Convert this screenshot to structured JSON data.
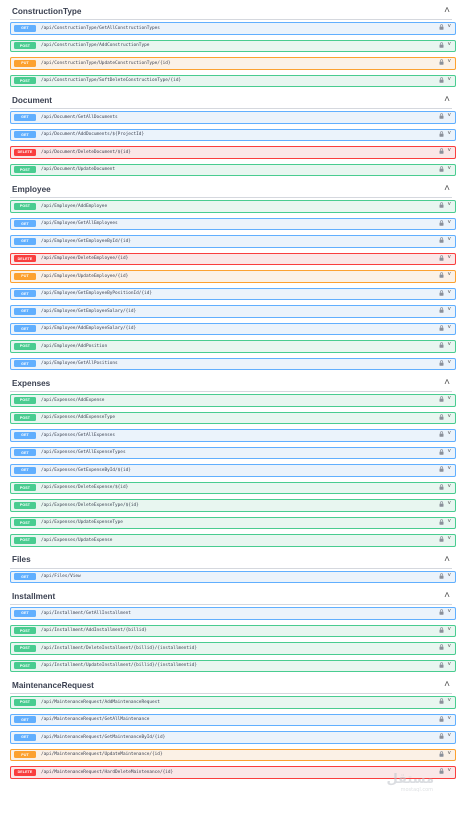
{
  "groups": [
    {
      "name": "ConstructionType",
      "ops": [
        {
          "method": "GET",
          "path": "/api/ConstructionType/GetAllConstructionTypes"
        },
        {
          "method": "POST",
          "path": "/api/ConstructionType/AddConstructionType"
        },
        {
          "method": "PUT",
          "path": "/api/ConstructionType/UpdateConstructionType/{id}"
        },
        {
          "method": "POST",
          "path": "/api/ConstructionType/SoftDeleteConstructionType/{id}"
        }
      ]
    },
    {
      "name": "Document",
      "ops": [
        {
          "method": "GET",
          "path": "/api/Document/GetAllDocuments"
        },
        {
          "method": "GET",
          "path": "/api/Document/AddDocuments/${ProjectId}"
        },
        {
          "method": "DELETE",
          "path": "/api/Document/DeleteDocument/${id}"
        },
        {
          "method": "POST",
          "path": "/api/Document/UpdateDocument"
        }
      ]
    },
    {
      "name": "Employee",
      "ops": [
        {
          "method": "POST",
          "path": "/api/Employee/AddEmployee"
        },
        {
          "method": "GET",
          "path": "/api/Employee/GetAllEmployees"
        },
        {
          "method": "GET",
          "path": "/api/Employee/GetEmployeeById/{id}"
        },
        {
          "method": "DELETE",
          "path": "/api/Employee/DeleteEmployee/{id}"
        },
        {
          "method": "PUT",
          "path": "/api/Employee/UpdateEmployee/{id}"
        },
        {
          "method": "GET",
          "path": "/api/Employee/GetEmployeeByPositionId/{id}"
        },
        {
          "method": "GET",
          "path": "/api/Employee/GetEmployeeSalary/{id}"
        },
        {
          "method": "GET",
          "path": "/api/Employee/AddEmployeeSalary/{id}"
        },
        {
          "method": "POST",
          "path": "/api/Employee/AddPosition"
        },
        {
          "method": "GET",
          "path": "/api/Employee/GetAllPositions"
        }
      ]
    },
    {
      "name": "Expenses",
      "ops": [
        {
          "method": "POST",
          "path": "/api/Expenses/AddExpense"
        },
        {
          "method": "POST",
          "path": "/api/Expenses/AddExpenseType"
        },
        {
          "method": "GET",
          "path": "/api/Expenses/GetAllExpenses"
        },
        {
          "method": "GET",
          "path": "/api/Expenses/GetAllExpenseTypes"
        },
        {
          "method": "GET",
          "path": "/api/Expenses/GetExpenseById/${id}"
        },
        {
          "method": "POST",
          "path": "/api/Expenses/DeleteExpense/${id}"
        },
        {
          "method": "POST",
          "path": "/api/Expenses/DeleteExpenseType/${id}"
        },
        {
          "method": "POST",
          "path": "/api/Expenses/UpdateExpenseType"
        },
        {
          "method": "POST",
          "path": "/api/Expenses/UpdateExpense"
        }
      ]
    },
    {
      "name": "Files",
      "ops": [
        {
          "method": "GET",
          "path": "/api/Files/View"
        }
      ]
    },
    {
      "name": "Installment",
      "ops": [
        {
          "method": "GET",
          "path": "/api/Installment/GetAllInstallment"
        },
        {
          "method": "POST",
          "path": "/api/Installment/AddInstallment/{billid}"
        },
        {
          "method": "POST",
          "path": "/api/Installment/DeleteInstallment/{billid}/{installmentid}"
        },
        {
          "method": "POST",
          "path": "/api/Installment/UpdateInstallment/{billid}/{installmentid}"
        }
      ]
    },
    {
      "name": "MaintenanceRequest",
      "ops": [
        {
          "method": "POST",
          "path": "/api/MaintenanceRequest/AddMaintenanceRequest"
        },
        {
          "method": "GET",
          "path": "/api/MaintenanceRequest/GetAllMaintenance"
        },
        {
          "method": "GET",
          "path": "/api/MaintenanceRequest/GetMaintenanceById/{id}"
        },
        {
          "method": "PUT",
          "path": "/api/MaintenanceRequest/UpdateMaintenance/{id}"
        },
        {
          "method": "DELETE",
          "path": "/api/MaintenanceRequest/HardDeleteMaintenance/{id}"
        }
      ]
    }
  ],
  "icons": {
    "group_toggle": "chevron-up-icon",
    "lock": "lock-icon",
    "op_toggle": "chevron-down-icon"
  },
  "colors": {
    "get": "#61affe",
    "post": "#49cc90",
    "put": "#fca130",
    "delete": "#f93e3e"
  },
  "watermark": {
    "word": "مستقل",
    "sub": "mostaql.com"
  }
}
